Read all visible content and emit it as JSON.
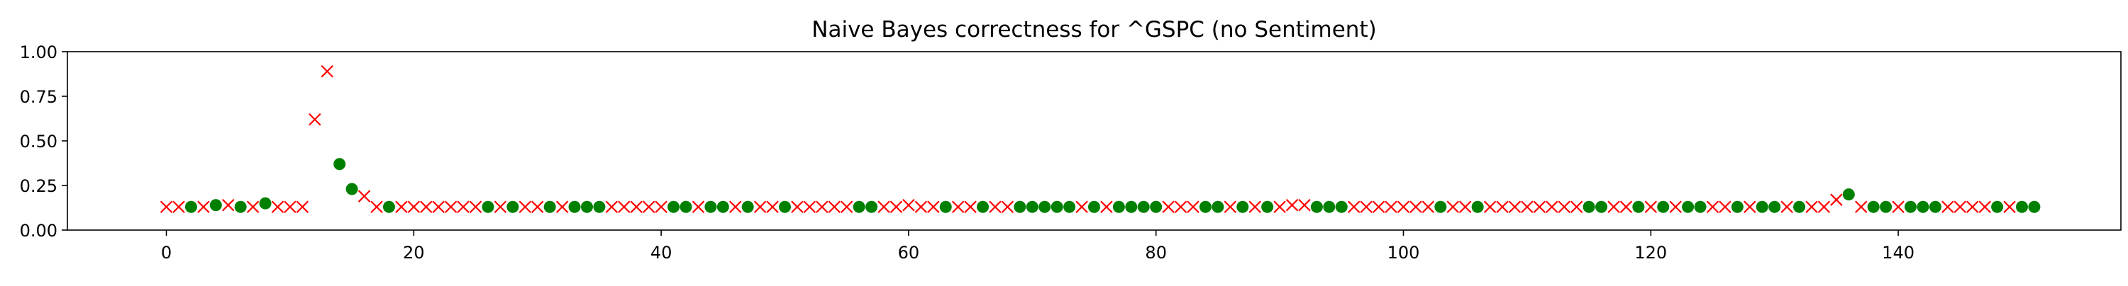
{
  "chart_data": {
    "type": "scatter",
    "title": "Naive Bayes correctness for ^GSPC (no Sentiment)",
    "xlabel": "",
    "ylabel": "",
    "xlim": [
      -8,
      158
    ],
    "ylim": [
      0,
      1
    ],
    "xticks": [
      0,
      20,
      40,
      60,
      80,
      100,
      120,
      140
    ],
    "yticks": [
      0.0,
      0.25,
      0.5,
      0.75,
      1.0
    ],
    "xtick_labels": [
      "0",
      "20",
      "40",
      "60",
      "80",
      "100",
      "120",
      "140"
    ],
    "ytick_labels": [
      "0.00",
      "0.25",
      "0.50",
      "0.75",
      "1.00"
    ],
    "grid": false,
    "legend": "none",
    "series": [
      {
        "marker": "circle",
        "color": "#008000",
        "points": [
          [
            2,
            0.13
          ],
          [
            4,
            0.14
          ],
          [
            6,
            0.13
          ],
          [
            8,
            0.15
          ],
          [
            14,
            0.37
          ],
          [
            15,
            0.23
          ],
          [
            18,
            0.13
          ],
          [
            26,
            0.13
          ],
          [
            28,
            0.13
          ],
          [
            31,
            0.13
          ],
          [
            33,
            0.13
          ],
          [
            34,
            0.13
          ],
          [
            35,
            0.13
          ],
          [
            41,
            0.13
          ],
          [
            42,
            0.13
          ],
          [
            44,
            0.13
          ],
          [
            45,
            0.13
          ],
          [
            47,
            0.13
          ],
          [
            50,
            0.13
          ],
          [
            56,
            0.13
          ],
          [
            57,
            0.13
          ],
          [
            63,
            0.13
          ],
          [
            66,
            0.13
          ],
          [
            69,
            0.13
          ],
          [
            70,
            0.13
          ],
          [
            71,
            0.13
          ],
          [
            72,
            0.13
          ],
          [
            73,
            0.13
          ],
          [
            75,
            0.13
          ],
          [
            77,
            0.13
          ],
          [
            78,
            0.13
          ],
          [
            79,
            0.13
          ],
          [
            80,
            0.13
          ],
          [
            84,
            0.13
          ],
          [
            85,
            0.13
          ],
          [
            87,
            0.13
          ],
          [
            89,
            0.13
          ],
          [
            93,
            0.13
          ],
          [
            94,
            0.13
          ],
          [
            95,
            0.13
          ],
          [
            103,
            0.13
          ],
          [
            106,
            0.13
          ],
          [
            115,
            0.13
          ],
          [
            116,
            0.13
          ],
          [
            119,
            0.13
          ],
          [
            121,
            0.13
          ],
          [
            123,
            0.13
          ],
          [
            124,
            0.13
          ],
          [
            127,
            0.13
          ],
          [
            129,
            0.13
          ],
          [
            130,
            0.13
          ],
          [
            132,
            0.13
          ],
          [
            136,
            0.2
          ],
          [
            138,
            0.13
          ],
          [
            139,
            0.13
          ],
          [
            141,
            0.13
          ],
          [
            142,
            0.13
          ],
          [
            143,
            0.13
          ],
          [
            148,
            0.13
          ],
          [
            150,
            0.13
          ],
          [
            151,
            0.13
          ]
        ]
      },
      {
        "marker": "x",
        "color": "#ff0000",
        "points": [
          [
            0,
            0.13
          ],
          [
            1,
            0.13
          ],
          [
            3,
            0.13
          ],
          [
            5,
            0.14
          ],
          [
            7,
            0.13
          ],
          [
            9,
            0.13
          ],
          [
            10,
            0.13
          ],
          [
            11,
            0.13
          ],
          [
            12,
            0.62
          ],
          [
            13,
            0.89
          ],
          [
            16,
            0.19
          ],
          [
            17,
            0.13
          ],
          [
            19,
            0.13
          ],
          [
            20,
            0.13
          ],
          [
            21,
            0.13
          ],
          [
            22,
            0.13
          ],
          [
            23,
            0.13
          ],
          [
            24,
            0.13
          ],
          [
            25,
            0.13
          ],
          [
            27,
            0.13
          ],
          [
            29,
            0.13
          ],
          [
            30,
            0.13
          ],
          [
            32,
            0.13
          ],
          [
            36,
            0.13
          ],
          [
            37,
            0.13
          ],
          [
            38,
            0.13
          ],
          [
            39,
            0.13
          ],
          [
            40,
            0.13
          ],
          [
            43,
            0.13
          ],
          [
            46,
            0.13
          ],
          [
            48,
            0.13
          ],
          [
            49,
            0.13
          ],
          [
            51,
            0.13
          ],
          [
            52,
            0.13
          ],
          [
            53,
            0.13
          ],
          [
            54,
            0.13
          ],
          [
            55,
            0.13
          ],
          [
            58,
            0.13
          ],
          [
            59,
            0.13
          ],
          [
            60,
            0.14
          ],
          [
            61,
            0.13
          ],
          [
            62,
            0.13
          ],
          [
            64,
            0.13
          ],
          [
            65,
            0.13
          ],
          [
            67,
            0.13
          ],
          [
            68,
            0.13
          ],
          [
            74,
            0.13
          ],
          [
            76,
            0.13
          ],
          [
            81,
            0.13
          ],
          [
            82,
            0.13
          ],
          [
            83,
            0.13
          ],
          [
            86,
            0.13
          ],
          [
            88,
            0.13
          ],
          [
            90,
            0.13
          ],
          [
            91,
            0.14
          ],
          [
            92,
            0.14
          ],
          [
            96,
            0.13
          ],
          [
            97,
            0.13
          ],
          [
            98,
            0.13
          ],
          [
            99,
            0.13
          ],
          [
            100,
            0.13
          ],
          [
            101,
            0.13
          ],
          [
            102,
            0.13
          ],
          [
            104,
            0.13
          ],
          [
            105,
            0.13
          ],
          [
            107,
            0.13
          ],
          [
            108,
            0.13
          ],
          [
            109,
            0.13
          ],
          [
            110,
            0.13
          ],
          [
            111,
            0.13
          ],
          [
            112,
            0.13
          ],
          [
            113,
            0.13
          ],
          [
            114,
            0.13
          ],
          [
            117,
            0.13
          ],
          [
            118,
            0.13
          ],
          [
            120,
            0.13
          ],
          [
            122,
            0.13
          ],
          [
            125,
            0.13
          ],
          [
            126,
            0.13
          ],
          [
            128,
            0.13
          ],
          [
            131,
            0.13
          ],
          [
            133,
            0.13
          ],
          [
            134,
            0.13
          ],
          [
            135,
            0.17
          ],
          [
            137,
            0.13
          ],
          [
            140,
            0.13
          ],
          [
            144,
            0.13
          ],
          [
            145,
            0.13
          ],
          [
            146,
            0.13
          ],
          [
            147,
            0.13
          ],
          [
            149,
            0.13
          ]
        ]
      }
    ]
  }
}
